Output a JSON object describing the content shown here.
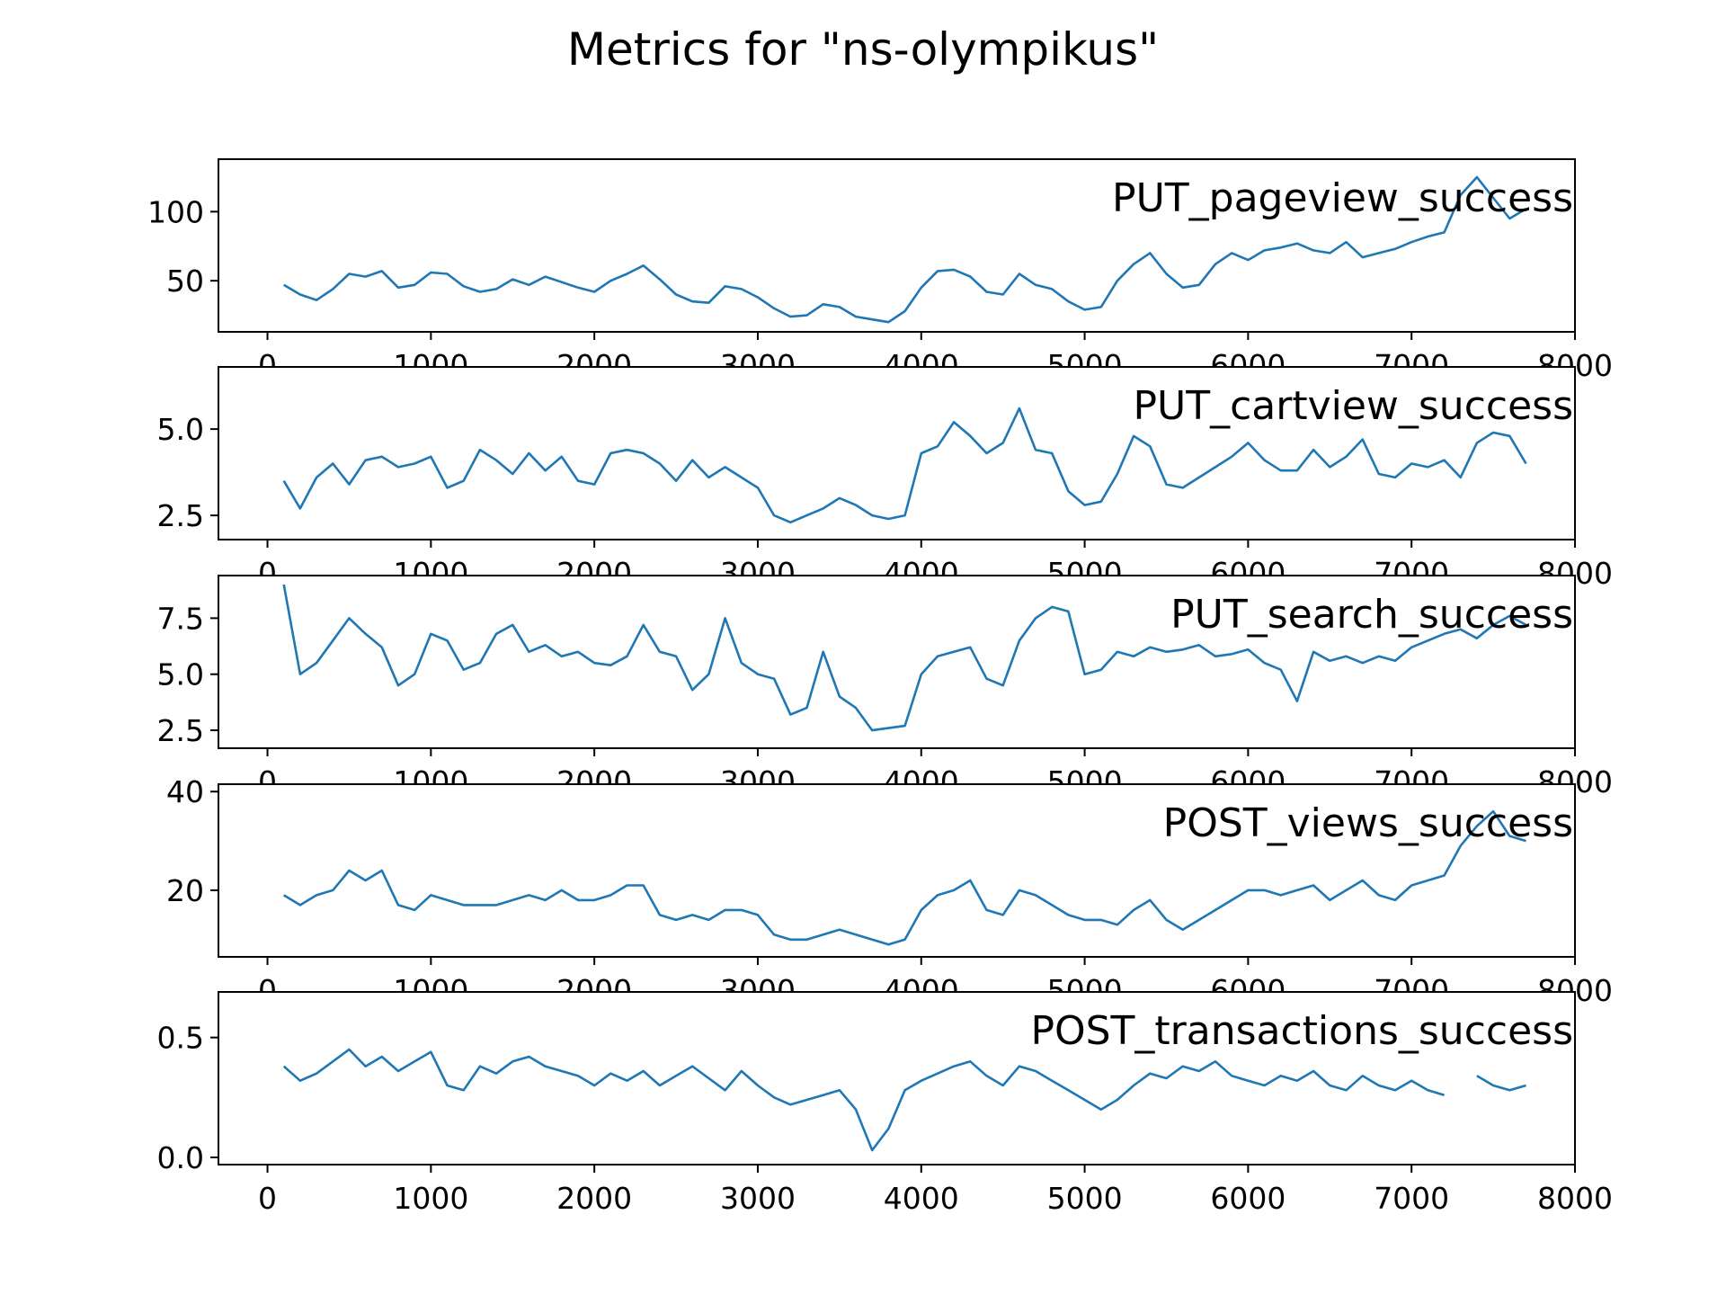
{
  "chart_data": {
    "type": "line",
    "title": "Metrics for \"ns-olympikus\"",
    "line_color": "#1f77b4",
    "xlim": [
      -300,
      8000
    ],
    "xticks": [
      0,
      1000,
      2000,
      3000,
      4000,
      5000,
      6000,
      7000,
      8000
    ],
    "x_tick_labels": [
      "0",
      "1000",
      "2000",
      "3000",
      "4000",
      "5000",
      "6000",
      "7000",
      "8000"
    ],
    "x": [
      100,
      200,
      300,
      400,
      500,
      600,
      700,
      800,
      900,
      1000,
      1100,
      1200,
      1300,
      1400,
      1500,
      1600,
      1700,
      1800,
      1900,
      2000,
      2100,
      2200,
      2300,
      2400,
      2500,
      2600,
      2700,
      2800,
      2900,
      3000,
      3100,
      3200,
      3300,
      3400,
      3500,
      3600,
      3700,
      3800,
      3900,
      4000,
      4100,
      4200,
      4300,
      4400,
      4500,
      4600,
      4700,
      4800,
      4900,
      5000,
      5100,
      5200,
      5300,
      5400,
      5500,
      5600,
      5700,
      5800,
      5900,
      6000,
      6100,
      6200,
      6300,
      6400,
      6500,
      6600,
      6700,
      6800,
      6900,
      7000,
      7100,
      7200,
      7300,
      7400,
      7500,
      7600,
      7700
    ],
    "panels": [
      {
        "name": "PUT_pageview_success",
        "ylim": [
          13,
          138
        ],
        "yticks": [
          50,
          100
        ],
        "y_tick_labels": [
          "50",
          "100"
        ],
        "values": [
          47,
          40,
          36,
          44,
          55,
          53,
          57,
          45,
          47,
          56,
          55,
          46,
          42,
          44,
          51,
          47,
          53,
          49,
          45,
          42,
          50,
          55,
          61,
          51,
          40,
          35,
          34,
          46,
          44,
          38,
          30,
          24,
          25,
          33,
          31,
          24,
          22,
          20,
          28,
          45,
          57,
          58,
          53,
          42,
          40,
          55,
          47,
          44,
          35,
          29,
          31,
          50,
          62,
          70,
          55,
          45,
          47,
          62,
          70,
          65,
          72,
          74,
          77,
          72,
          70,
          78,
          67,
          70,
          73,
          78,
          82,
          85,
          112,
          125,
          110,
          95,
          102
        ]
      },
      {
        "name": "PUT_cartview_success",
        "ylim": [
          1.8,
          6.8
        ],
        "yticks": [
          2.5,
          5.0
        ],
        "y_tick_labels": [
          "2.5",
          "5.0"
        ],
        "values": [
          3.5,
          2.7,
          3.6,
          4.0,
          3.4,
          4.1,
          4.2,
          3.9,
          4.0,
          4.2,
          3.3,
          3.5,
          4.4,
          4.1,
          3.7,
          4.3,
          3.8,
          4.2,
          3.5,
          3.4,
          4.3,
          4.4,
          4.3,
          4.0,
          3.5,
          4.1,
          3.6,
          3.9,
          3.6,
          3.3,
          2.5,
          2.3,
          2.5,
          2.7,
          3.0,
          2.8,
          2.5,
          2.4,
          2.5,
          4.3,
          4.5,
          5.2,
          4.8,
          4.3,
          4.6,
          5.6,
          4.4,
          4.3,
          3.2,
          2.8,
          2.9,
          3.7,
          4.8,
          4.5,
          3.4,
          3.3,
          3.6,
          3.9,
          4.2,
          4.6,
          4.1,
          3.8,
          3.8,
          4.4,
          3.9,
          4.2,
          4.7,
          3.7,
          3.6,
          4.0,
          3.9,
          4.1,
          3.6,
          4.6,
          4.9,
          4.8,
          4.0
        ]
      },
      {
        "name": "PUT_search_success",
        "ylim": [
          1.7,
          9.4
        ],
        "yticks": [
          2.5,
          5.0,
          7.5
        ],
        "y_tick_labels": [
          "2.5",
          "5.0",
          "7.5"
        ],
        "values": [
          9.0,
          5.0,
          5.5,
          6.5,
          7.5,
          6.8,
          6.2,
          4.5,
          5.0,
          6.8,
          6.5,
          5.2,
          5.5,
          6.8,
          7.2,
          6.0,
          6.3,
          5.8,
          6.0,
          5.5,
          5.4,
          5.8,
          7.2,
          6.0,
          5.8,
          4.3,
          5.0,
          7.5,
          5.5,
          5.0,
          4.8,
          3.2,
          3.5,
          6.0,
          4.0,
          3.5,
          2.5,
          2.6,
          2.7,
          5.0,
          5.8,
          6.0,
          6.2,
          4.8,
          4.5,
          6.5,
          7.5,
          8.0,
          7.8,
          5.0,
          5.2,
          6.0,
          5.8,
          6.2,
          6.0,
          6.1,
          6.3,
          5.8,
          5.9,
          6.1,
          5.5,
          5.2,
          3.8,
          6.0,
          5.6,
          5.8,
          5.5,
          5.8,
          5.6,
          6.2,
          6.5,
          6.8,
          7.0,
          6.6,
          7.2,
          7.6,
          7.2
        ]
      },
      {
        "name": "POST_views_success",
        "ylim": [
          6.5,
          41.5
        ],
        "yticks": [
          20,
          40
        ],
        "y_tick_labels": [
          "20",
          "40"
        ],
        "values": [
          19,
          17,
          19,
          20,
          24,
          22,
          24,
          17,
          16,
          19,
          18,
          17,
          17,
          17,
          18,
          19,
          18,
          20,
          18,
          18,
          19,
          21,
          21,
          15,
          14,
          15,
          14,
          16,
          16,
          15,
          11,
          10,
          10,
          11,
          12,
          11,
          10,
          9,
          10,
          16,
          19,
          20,
          22,
          16,
          15,
          20,
          19,
          17,
          15,
          14,
          14,
          13,
          16,
          18,
          14,
          12,
          14,
          16,
          18,
          20,
          20,
          19,
          20,
          21,
          18,
          20,
          22,
          19,
          18,
          21,
          22,
          23,
          29,
          33,
          36,
          31,
          30
        ]
      },
      {
        "name": "POST_transactions_success",
        "ylim": [
          -0.03,
          0.69
        ],
        "yticks": [
          0.0,
          0.5
        ],
        "y_tick_labels": [
          "0.0",
          "0.5"
        ],
        "values": [
          0.38,
          0.32,
          0.35,
          0.4,
          0.45,
          0.38,
          0.42,
          0.36,
          0.4,
          0.44,
          0.3,
          0.28,
          0.38,
          0.35,
          0.4,
          0.42,
          0.38,
          0.36,
          0.34,
          0.3,
          0.35,
          0.32,
          0.36,
          0.3,
          0.34,
          0.38,
          0.33,
          0.28,
          0.36,
          0.3,
          0.25,
          0.22,
          0.24,
          0.26,
          0.28,
          0.2,
          0.03,
          0.12,
          0.28,
          0.32,
          0.35,
          0.38,
          0.4,
          0.34,
          0.3,
          0.38,
          0.36,
          0.32,
          0.28,
          0.24,
          0.2,
          0.24,
          0.3,
          0.35,
          0.33,
          0.38,
          0.36,
          0.4,
          0.34,
          0.32,
          0.3,
          0.34,
          0.32,
          0.36,
          0.3,
          0.28,
          0.34,
          0.3,
          0.28,
          0.32,
          0.28,
          0.26,
          null,
          0.34,
          0.3,
          0.28,
          0.3
        ]
      }
    ]
  }
}
